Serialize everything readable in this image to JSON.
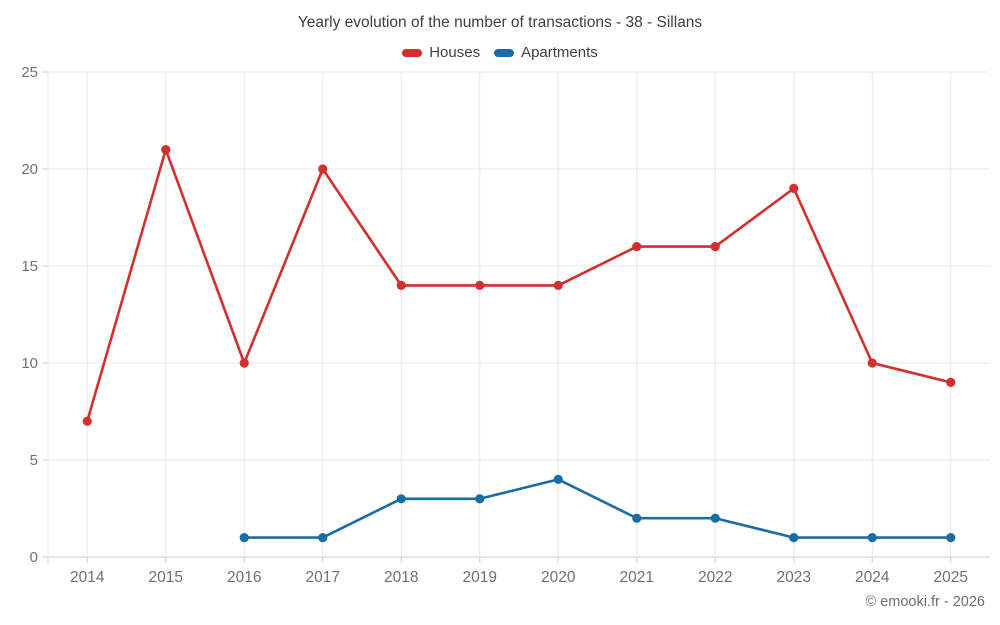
{
  "title": "Yearly evolution of the number of transactions - 38 - Sillans",
  "copyright": "© emooki.fr - 2026",
  "chart_data": {
    "type": "line",
    "categories": [
      "2014",
      "2015",
      "2016",
      "2017",
      "2018",
      "2019",
      "2020",
      "2021",
      "2022",
      "2023",
      "2024",
      "2025"
    ],
    "series": [
      {
        "name": "Houses",
        "color": "#d32f2f",
        "values": [
          7,
          21,
          10,
          20,
          14,
          14,
          14,
          16,
          16,
          19,
          10,
          9
        ]
      },
      {
        "name": "Apartments",
        "color": "#1b6ca3",
        "values": [
          null,
          null,
          1,
          1,
          3,
          3,
          4,
          2,
          2,
          1,
          1,
          1
        ]
      }
    ],
    "title": "Yearly evolution of the number of transactions - 38 - Sillans",
    "xlabel": "",
    "ylabel": "",
    "ylim": [
      0,
      25
    ],
    "yticks": [
      0,
      5,
      10,
      15,
      20,
      25
    ],
    "grid": true,
    "legend_position": "top"
  },
  "colors": {
    "gridline": "#e8e8e8",
    "axis_line": "#cfcfcf",
    "tick": "#cfcfcf",
    "axis_label": "#707070",
    "title_text": "#3f3f3f"
  }
}
